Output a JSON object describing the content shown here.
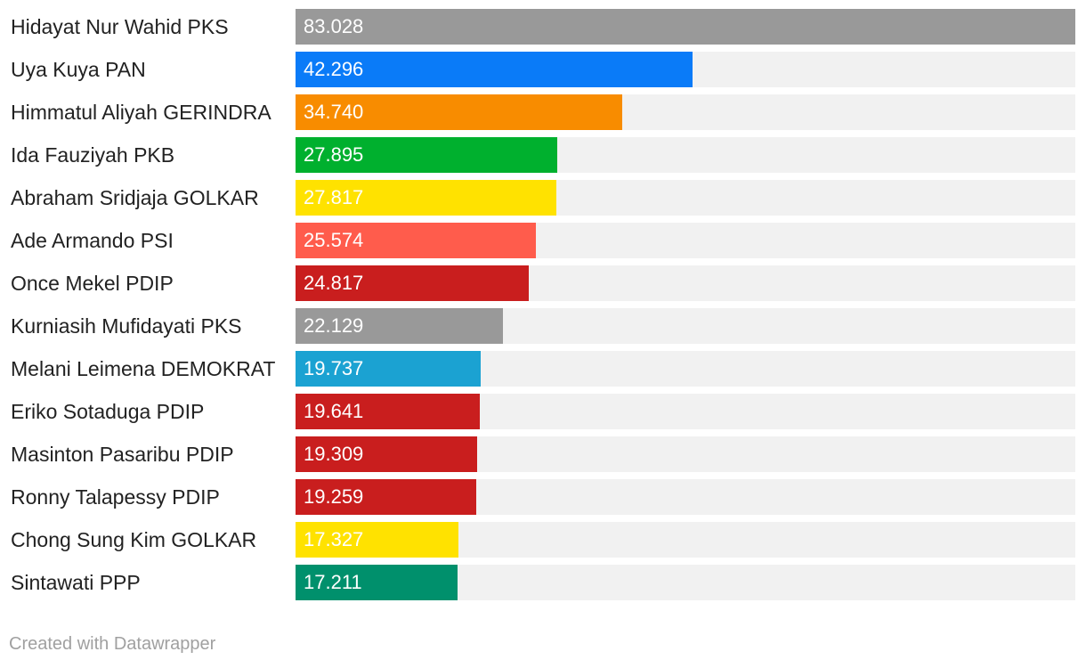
{
  "chart_data": {
    "type": "bar",
    "orientation": "horizontal",
    "xlim": [
      0,
      83.028
    ],
    "bars": [
      {
        "label": "Hidayat Nur Wahid PKS",
        "value": 83.028,
        "value_label": "83.028",
        "color": "#999999"
      },
      {
        "label": "Uya Kuya PAN",
        "value": 42.296,
        "value_label": "42.296",
        "color": "#0a7bf8"
      },
      {
        "label": "Himmatul Aliyah GERINDRA",
        "value": 34.74,
        "value_label": "34.740",
        "color": "#f88c00"
      },
      {
        "label": "Ida Fauziyah PKB",
        "value": 27.895,
        "value_label": "27.895",
        "color": "#00b02e"
      },
      {
        "label": "Abraham Sridjaja GOLKAR",
        "value": 27.817,
        "value_label": "27.817",
        "color": "#ffe200"
      },
      {
        "label": "Ade Armando PSI",
        "value": 25.574,
        "value_label": "25.574",
        "color": "#ff5c4c"
      },
      {
        "label": "Once Mekel PDIP",
        "value": 24.817,
        "value_label": "24.817",
        "color": "#c91e1e"
      },
      {
        "label": "Kurniasih Mufidayati PKS",
        "value": 22.129,
        "value_label": "22.129",
        "color": "#999999"
      },
      {
        "label": "Melani Leimena DEMOKRAT",
        "value": 19.737,
        "value_label": "19.737",
        "color": "#1ba2d2"
      },
      {
        "label": "Eriko Sotaduga PDIP",
        "value": 19.641,
        "value_label": "19.641",
        "color": "#c91e1e"
      },
      {
        "label": "Masinton Pasaribu PDIP",
        "value": 19.309,
        "value_label": "19.309",
        "color": "#c91e1e"
      },
      {
        "label": "Ronny Talapessy PDIP",
        "value": 19.259,
        "value_label": "19.259",
        "color": "#c91e1e"
      },
      {
        "label": "Chong Sung Kim GOLKAR",
        "value": 17.327,
        "value_label": "17.327",
        "color": "#ffe200"
      },
      {
        "label": "Sintawati PPP",
        "value": 17.211,
        "value_label": "17.211",
        "color": "#00906c"
      }
    ]
  },
  "footer": {
    "credit": "Created with Datawrapper"
  }
}
